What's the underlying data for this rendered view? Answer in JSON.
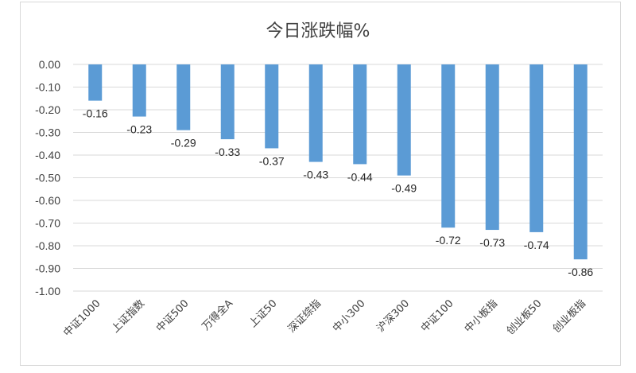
{
  "chart_data": {
    "type": "bar",
    "title": "今日涨跌幅%",
    "categories": [
      "中证1000",
      "上证指数",
      "中证500",
      "万得全A",
      "上证50",
      "深证综指",
      "中小300",
      "沪深300",
      "中证100",
      "中小板指",
      "创业板50",
      "创业板指"
    ],
    "values": [
      -0.16,
      -0.23,
      -0.29,
      -0.33,
      -0.37,
      -0.43,
      -0.44,
      -0.49,
      -0.72,
      -0.73,
      -0.74,
      -0.86
    ],
    "data_labels": [
      "-0.16",
      "-0.23",
      "-0.29",
      "-0.33",
      "-0.37",
      "-0.43",
      "-0.44",
      "-0.49",
      "-0.72",
      "-0.73",
      "-0.74",
      "-0.86"
    ],
    "y_ticks": [
      "0.00",
      "-0.10",
      "-0.20",
      "-0.30",
      "-0.40",
      "-0.50",
      "-0.60",
      "-0.70",
      "-0.80",
      "-0.90",
      "-1.00"
    ],
    "ylim": [
      -1.0,
      0.0
    ],
    "grid": true,
    "legend": "none",
    "bar_color": "#5b9bd5",
    "xlabel": "",
    "ylabel": ""
  }
}
